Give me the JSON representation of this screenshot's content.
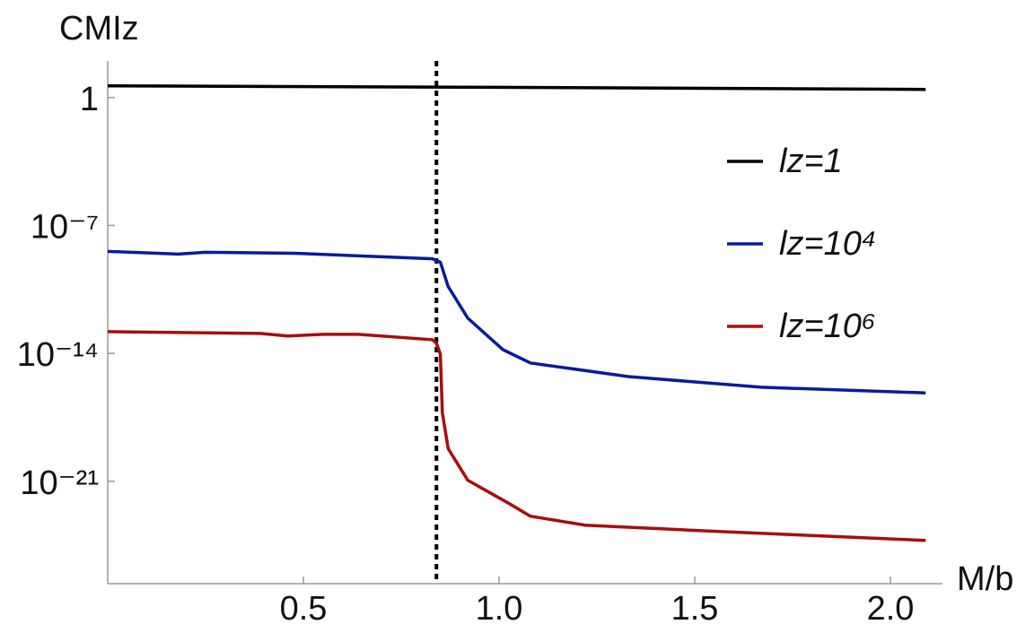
{
  "chart_data": {
    "type": "line",
    "title": null,
    "x_label": "M/b",
    "y_label": "CMIz",
    "log_y": true,
    "xlim": [
      0,
      2.11
    ],
    "xticks": [
      0.5,
      {
        "value": 1.0,
        "label": "1.0"
      },
      1.5,
      {
        "value": 2.0,
        "label": "2.0"
      }
    ],
    "ylim": [
      2.5e-27,
      100
    ],
    "yticks": [
      1,
      {
        "value": 1e-07,
        "label": "10⁻⁷"
      },
      {
        "value": 1e-14,
        "label": "10⁻¹⁴"
      },
      {
        "value": 1e-21,
        "label": "10⁻²¹"
      }
    ],
    "vline_x": 0.84,
    "vline_color": "#000000",
    "legend": "right",
    "series": [
      {
        "name": "lz=1",
        "color": "#000000",
        "x": [
          0,
          1.0,
          2.09
        ],
        "values": [
          4.4,
          3.6,
          2.8
        ]
      },
      {
        "name": "lz=10⁴",
        "color": "#0a1a9e",
        "x": [
          0,
          0.18,
          0.25,
          0.48,
          0.83,
          0.85,
          0.87,
          0.92,
          1.01,
          1.08,
          1.33,
          1.67,
          2.09
        ],
        "values": [
          3.8e-09,
          2.7e-09,
          3.4e-09,
          3e-09,
          1.5e-09,
          9.8e-10,
          4.6e-11,
          8.5e-13,
          1.6e-14,
          3e-15,
          5.4e-16,
          1.4e-16,
          6.9e-17
        ]
      },
      {
        "name": "lz=10⁶",
        "color": "#a80d0d",
        "x": [
          0,
          0.39,
          0.46,
          0.55,
          0.64,
          0.83,
          0.84,
          0.85,
          0.855,
          0.87,
          0.92,
          1.03,
          1.08,
          1.22,
          1.56,
          2.09
        ],
        "values": [
          1.55e-13,
          1.23e-13,
          8.9e-14,
          1.1e-13,
          1.1e-13,
          5.6e-14,
          3.5e-14,
          9.1e-15,
          5.8e-18,
          6.2e-20,
          1.15e-21,
          5.4e-23,
          1.23e-23,
          4e-24,
          1.8e-24,
          5.8e-25
        ]
      }
    ]
  }
}
